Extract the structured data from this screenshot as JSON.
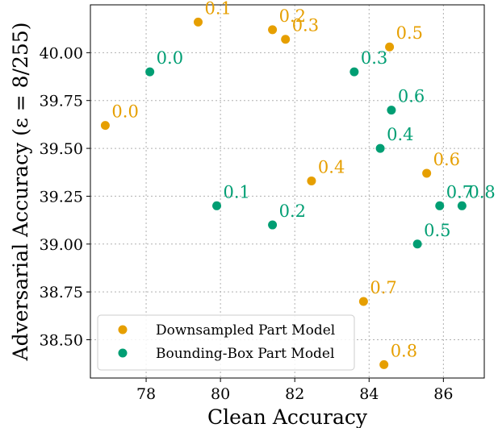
{
  "chart_data": {
    "type": "scatter",
    "xlabel": "Clean Accuracy",
    "ylabel": "Adversarial Accuracy (ε = 8/255)",
    "xlim": [
      76.5,
      87.1
    ],
    "ylim": [
      38.3,
      40.25
    ],
    "x_ticks": [
      78,
      80,
      82,
      84,
      86
    ],
    "x_tick_labels": [
      "78",
      "80",
      "82",
      "84",
      "86"
    ],
    "y_ticks": [
      38.5,
      38.75,
      39.0,
      39.25,
      39.5,
      39.75,
      40.0
    ],
    "y_tick_labels": [
      "38.50",
      "38.75",
      "39.00",
      "39.25",
      "39.50",
      "39.75",
      "40.00"
    ],
    "grid": true,
    "legend_position": "lower-left",
    "series": [
      {
        "name": "Downsampled Part Model",
        "color": "#e69f00",
        "points": [
          {
            "x": 76.9,
            "y": 39.62,
            "label": "0.0"
          },
          {
            "x": 79.4,
            "y": 40.16,
            "label": "0.1"
          },
          {
            "x": 81.4,
            "y": 40.12,
            "label": "0.2"
          },
          {
            "x": 81.75,
            "y": 40.07,
            "label": "0.3"
          },
          {
            "x": 82.45,
            "y": 39.33,
            "label": "0.4"
          },
          {
            "x": 84.55,
            "y": 40.03,
            "label": "0.5"
          },
          {
            "x": 85.55,
            "y": 39.37,
            "label": "0.6"
          },
          {
            "x": 83.85,
            "y": 38.7,
            "label": "0.7"
          },
          {
            "x": 84.4,
            "y": 38.37,
            "label": "0.8"
          }
        ]
      },
      {
        "name": "Bounding-Box Part Model",
        "color": "#009e73",
        "points": [
          {
            "x": 78.1,
            "y": 39.9,
            "label": "0.0"
          },
          {
            "x": 79.9,
            "y": 39.2,
            "label": "0.1"
          },
          {
            "x": 81.4,
            "y": 39.1,
            "label": "0.2"
          },
          {
            "x": 83.6,
            "y": 39.9,
            "label": "0.3"
          },
          {
            "x": 84.3,
            "y": 39.5,
            "label": "0.4"
          },
          {
            "x": 85.3,
            "y": 39.0,
            "label": "0.5"
          },
          {
            "x": 84.6,
            "y": 39.7,
            "label": "0.6"
          },
          {
            "x": 85.9,
            "y": 39.2,
            "label": "0.7"
          },
          {
            "x": 86.5,
            "y": 39.2,
            "label": "0.8"
          }
        ]
      }
    ]
  }
}
